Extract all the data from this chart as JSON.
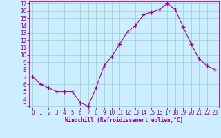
{
  "hours": [
    0,
    1,
    2,
    3,
    4,
    5,
    6,
    7,
    8,
    9,
    10,
    11,
    12,
    13,
    14,
    15,
    16,
    17,
    18,
    19,
    20,
    21,
    22,
    23
  ],
  "values": [
    7.0,
    6.0,
    5.5,
    5.0,
    5.0,
    5.0,
    3.5,
    3.0,
    5.5,
    8.5,
    9.8,
    11.5,
    13.2,
    14.0,
    15.5,
    15.8,
    16.2,
    17.0,
    16.2,
    13.8,
    11.5,
    9.5,
    8.5,
    8.0
  ],
  "line_color": "#990099",
  "marker": "+",
  "marker_size": 4,
  "marker_lw": 1.0,
  "bg_color": "#cceeff",
  "grid_color": "#99cccc",
  "xlabel": "Windchill (Refroidissement éolien,°C)",
  "xlabel_color": "#990099",
  "tick_color": "#990099",
  "spine_color": "#990099",
  "ylim": [
    3,
    17
  ],
  "xlim": [
    0,
    23
  ],
  "yticks": [
    3,
    4,
    5,
    6,
    7,
    8,
    9,
    10,
    11,
    12,
    13,
    14,
    15,
    16,
    17
  ],
  "xticks": [
    0,
    1,
    2,
    3,
    4,
    5,
    6,
    7,
    8,
    9,
    10,
    11,
    12,
    13,
    14,
    15,
    16,
    17,
    18,
    19,
    20,
    21,
    22,
    23
  ],
  "axis_fontsize": 5.5,
  "tick_fontsize": 5.5,
  "line_width": 0.8
}
